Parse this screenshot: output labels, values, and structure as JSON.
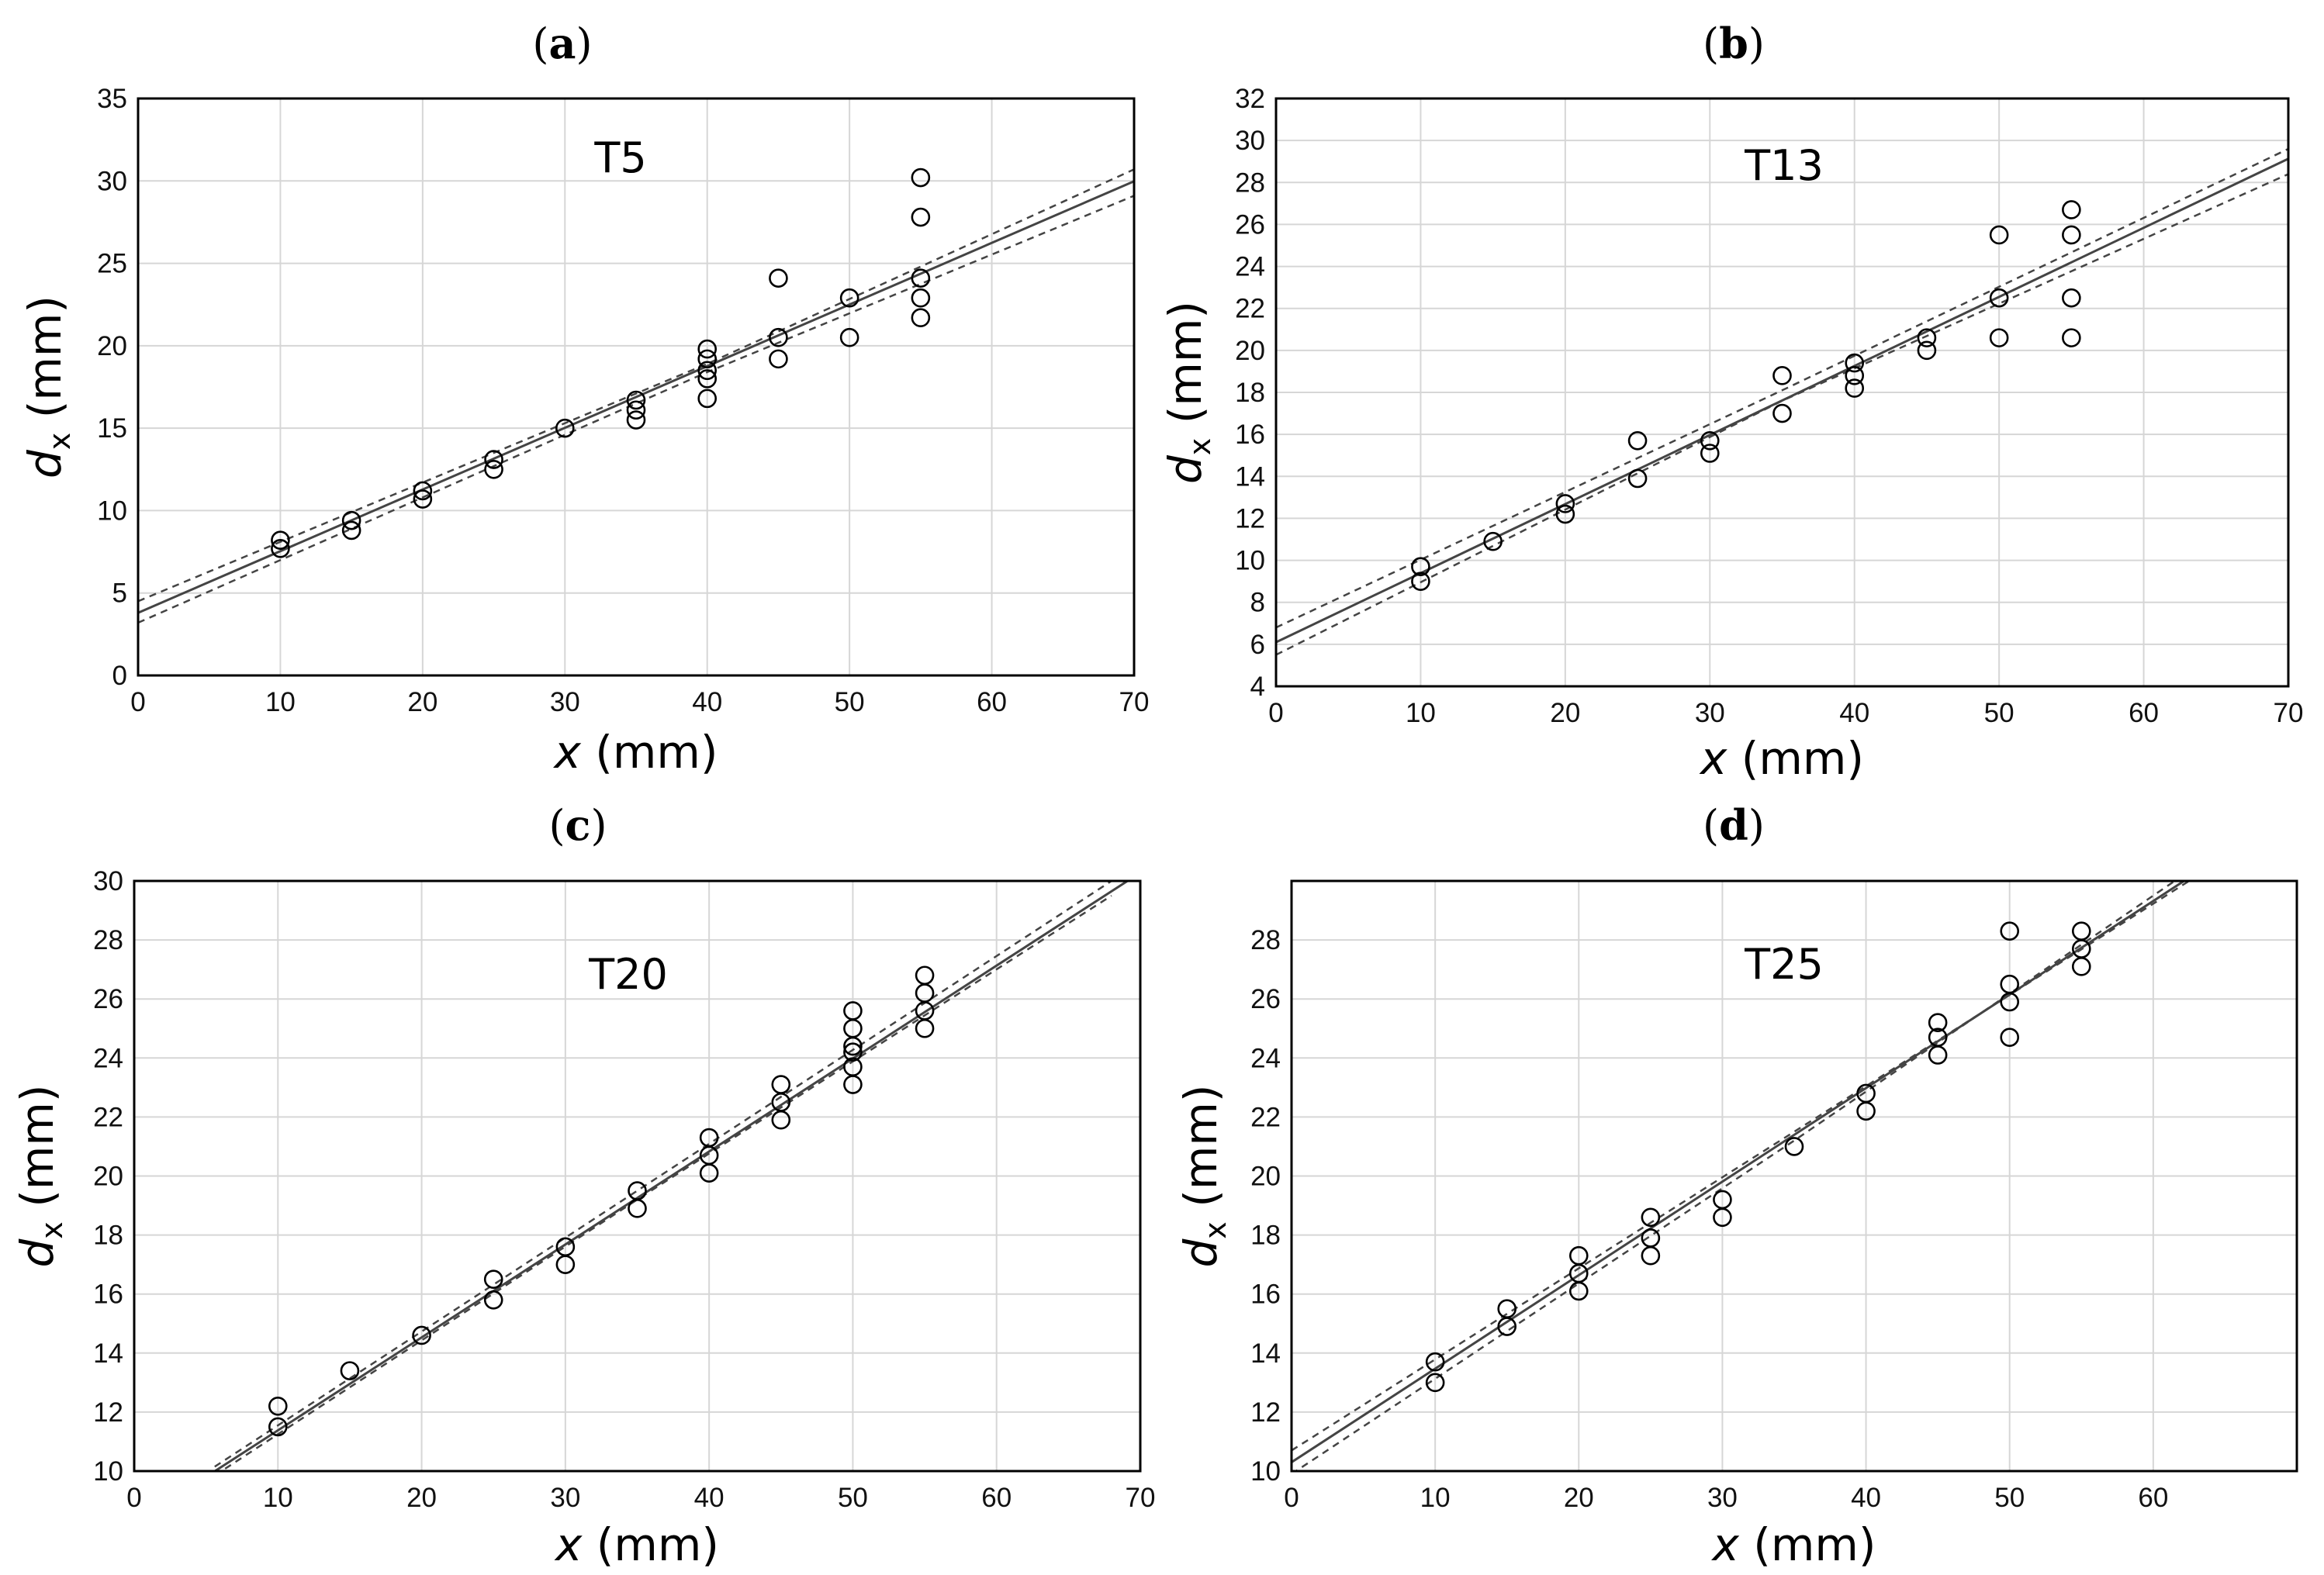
{
  "chart_data": [
    {
      "type": "scatter",
      "panel": "a",
      "series_label": "T5",
      "xlabel": "x",
      "xlabel_unit": "(mm)",
      "ylabel": "d",
      "ylabel_sub": "x",
      "ylabel_unit": "(mm)",
      "xlim": [
        0,
        70
      ],
      "ylim": [
        0,
        35
      ],
      "xticks": [
        0,
        10,
        20,
        30,
        40,
        50,
        60,
        70
      ],
      "yticks": [
        0,
        5,
        10,
        15,
        20,
        25,
        30,
        35
      ],
      "fit": {
        "intercept": 3.8,
        "slope": 0.374
      },
      "ci": {
        "lower": [
          [
            0,
            3.2
          ],
          [
            40,
            18.4
          ],
          [
            70,
            29.1
          ]
        ],
        "upper": [
          [
            0,
            4.5
          ],
          [
            40,
            18.9
          ],
          [
            70,
            30.7
          ]
        ]
      },
      "points": [
        [
          10,
          8.2
        ],
        [
          10,
          7.7
        ],
        [
          15,
          9.4
        ],
        [
          15,
          8.8
        ],
        [
          20,
          11.2
        ],
        [
          20,
          10.7
        ],
        [
          25,
          13.1
        ],
        [
          25,
          12.5
        ],
        [
          30,
          15.0
        ],
        [
          35,
          16.7
        ],
        [
          35,
          16.1
        ],
        [
          35,
          15.5
        ],
        [
          40,
          19.8
        ],
        [
          40,
          19.2
        ],
        [
          40,
          18.5
        ],
        [
          40,
          18.0
        ],
        [
          40,
          16.8
        ],
        [
          45,
          24.1
        ],
        [
          45,
          20.5
        ],
        [
          45,
          19.2
        ],
        [
          50,
          22.9
        ],
        [
          50,
          20.5
        ],
        [
          55,
          30.2
        ],
        [
          55,
          27.8
        ],
        [
          55,
          24.1
        ],
        [
          55,
          22.9
        ],
        [
          55,
          21.7
        ]
      ]
    },
    {
      "type": "scatter",
      "panel": "b",
      "series_label": "T13",
      "xlabel": "x",
      "xlabel_unit": "(mm)",
      "ylabel": "d",
      "ylabel_sub": "x",
      "ylabel_unit": "(mm)",
      "xlim": [
        0,
        70
      ],
      "ylim": [
        4,
        32
      ],
      "xticks": [
        0,
        10,
        20,
        30,
        40,
        50,
        60,
        70
      ],
      "yticks": [
        4,
        6,
        8,
        10,
        12,
        14,
        16,
        18,
        20,
        22,
        24,
        26,
        28,
        30,
        32
      ],
      "fit": {
        "intercept": 6.1,
        "slope": 0.329
      },
      "ci": {
        "lower": [
          [
            0,
            5.5
          ],
          [
            35,
            17.6
          ],
          [
            70,
            28.4
          ]
        ],
        "upper": [
          [
            0,
            6.8
          ],
          [
            35,
            18.1
          ],
          [
            70,
            29.6
          ]
        ]
      },
      "points": [
        [
          10,
          9.7
        ],
        [
          10,
          9.0
        ],
        [
          15,
          10.9
        ],
        [
          20,
          12.7
        ],
        [
          20,
          12.2
        ],
        [
          25,
          15.7
        ],
        [
          25,
          13.9
        ],
        [
          30,
          15.7
        ],
        [
          30,
          15.1
        ],
        [
          35,
          18.8
        ],
        [
          35,
          17.0
        ],
        [
          40,
          19.4
        ],
        [
          40,
          18.8
        ],
        [
          40,
          18.2
        ],
        [
          45,
          20.6
        ],
        [
          45,
          20.0
        ],
        [
          50,
          25.5
        ],
        [
          50,
          22.5
        ],
        [
          50,
          20.6
        ],
        [
          55,
          26.7
        ],
        [
          55,
          25.5
        ],
        [
          55,
          22.5
        ],
        [
          55,
          20.6
        ]
      ]
    },
    {
      "type": "scatter",
      "panel": "c",
      "series_label": "T20",
      "xlabel": "x",
      "xlabel_unit": "(mm)",
      "ylabel": "d",
      "ylabel_sub": "x",
      "ylabel_unit": "(mm)",
      "xlim": [
        0,
        70
      ],
      "ylim": [
        10,
        30
      ],
      "xticks": [
        0,
        10,
        20,
        30,
        40,
        50,
        60,
        70
      ],
      "yticks": [
        10,
        12,
        14,
        16,
        18,
        20,
        22,
        24,
        26,
        28,
        30
      ],
      "fit": {
        "intercept": 8.23,
        "slope": 0.315
      },
      "ci": {
        "lower": [
          [
            5.6,
            9.85
          ],
          [
            35,
            19.2
          ],
          [
            68,
            29.5
          ]
        ],
        "upper": [
          [
            5.6,
            10.15
          ],
          [
            35,
            19.5
          ],
          [
            68,
            30.0
          ]
        ]
      },
      "points": [
        [
          10,
          12.2
        ],
        [
          10,
          11.5
        ],
        [
          15,
          13.4
        ],
        [
          20,
          14.6
        ],
        [
          25,
          16.5
        ],
        [
          25,
          15.8
        ],
        [
          30,
          17.6
        ],
        [
          30,
          17.0
        ],
        [
          35,
          19.5
        ],
        [
          35,
          18.9
        ],
        [
          40,
          21.3
        ],
        [
          40,
          20.7
        ],
        [
          40,
          20.1
        ],
        [
          45,
          23.1
        ],
        [
          45,
          22.5
        ],
        [
          45,
          21.9
        ],
        [
          50,
          25.6
        ],
        [
          50,
          25.0
        ],
        [
          50,
          24.4
        ],
        [
          50,
          24.2
        ],
        [
          50,
          23.7
        ],
        [
          50,
          23.1
        ],
        [
          55,
          26.8
        ],
        [
          55,
          26.2
        ],
        [
          55,
          25.6
        ],
        [
          55,
          25.0
        ]
      ]
    },
    {
      "type": "scatter",
      "panel": "d",
      "series_label": "T25",
      "xlabel": "x",
      "xlabel_unit": "(mm)",
      "ylabel": "d",
      "ylabel_sub": "x",
      "ylabel_unit": "(mm)",
      "xlim": [
        0,
        70
      ],
      "ylim": [
        10,
        30
      ],
      "xticks": [
        0,
        10,
        20,
        30,
        40,
        50,
        60
      ],
      "yticks": [
        10,
        12,
        14,
        16,
        18,
        20,
        22,
        24,
        26,
        28
      ],
      "fit": {
        "intercept": 10.3,
        "slope": 0.317
      },
      "ci": {
        "lower": [
          [
            0,
            9.9
          ],
          [
            35,
            21.2
          ],
          [
            61.5,
            30.0
          ]
        ],
        "upper": [
          [
            0,
            10.7
          ],
          [
            35,
            21.5
          ],
          [
            62.5,
            30.0
          ]
        ]
      },
      "points": [
        [
          10,
          13.7
        ],
        [
          10,
          13.0
        ],
        [
          15,
          15.5
        ],
        [
          15,
          14.9
        ],
        [
          20,
          17.3
        ],
        [
          20,
          16.7
        ],
        [
          20,
          16.1
        ],
        [
          25,
          18.6
        ],
        [
          25,
          17.9
        ],
        [
          25,
          17.3
        ],
        [
          30,
          19.2
        ],
        [
          30,
          18.6
        ],
        [
          35,
          21.0
        ],
        [
          40,
          22.8
        ],
        [
          40,
          22.2
        ],
        [
          45,
          25.2
        ],
        [
          45,
          24.7
        ],
        [
          45,
          24.1
        ],
        [
          50,
          28.3
        ],
        [
          50,
          26.5
        ],
        [
          50,
          25.9
        ],
        [
          50,
          24.7
        ],
        [
          55,
          28.3
        ],
        [
          55,
          27.7
        ],
        [
          55,
          27.1
        ]
      ]
    }
  ]
}
